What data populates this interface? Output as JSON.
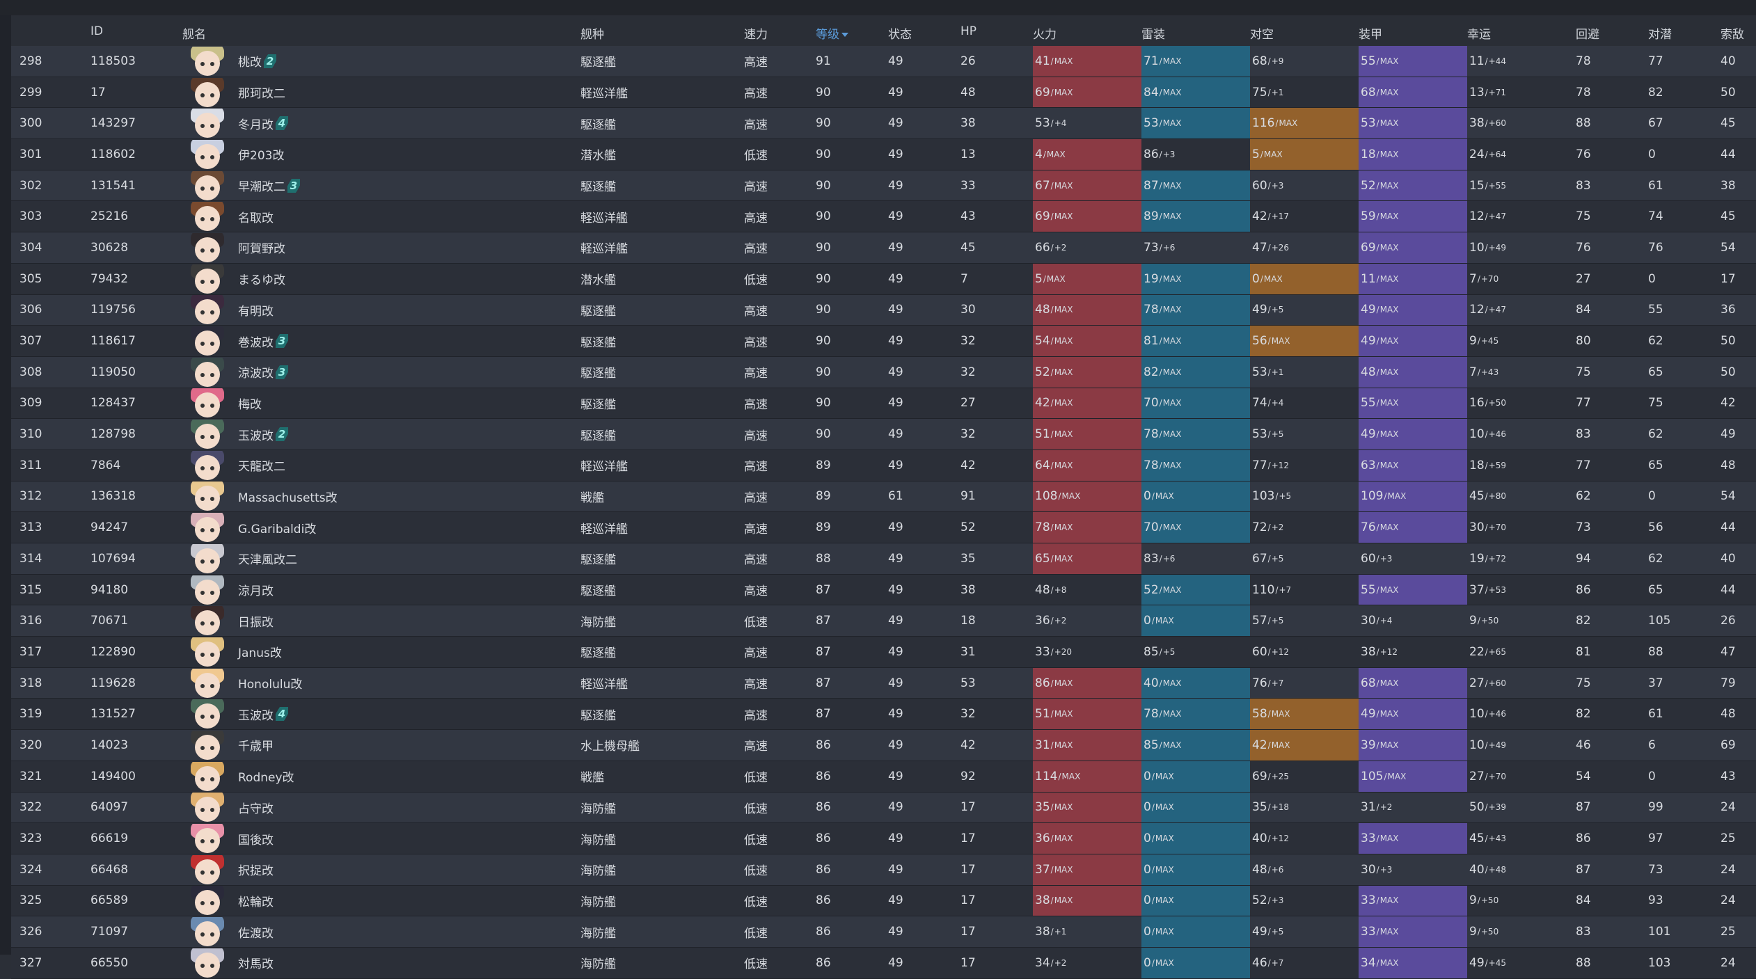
{
  "columns": {
    "no": "",
    "id": "ID",
    "name": "舰名",
    "type": "舰种",
    "speed": "速力",
    "level": "等级",
    "cond": "状态",
    "hp": "HP",
    "fire": "火力",
    "torp": "雷装",
    "aa": "对空",
    "armor": "装甲",
    "luck": "幸运",
    "evasion": "回避",
    "asw": "对潜",
    "los": "索敌"
  },
  "sort": {
    "column": "level",
    "direction": "desc"
  },
  "colors": {
    "fire_max": "#8b3a44",
    "torp_max": "#24637f",
    "aa_max": "#93612c",
    "armor_max": "#5a4b9c",
    "sorted_header": "#5b9bd9"
  },
  "rows": [
    {
      "no": "298",
      "id": "118503",
      "name": "桃改",
      "badge": "2",
      "type": "駆逐艦",
      "speed": "高速",
      "level": "91",
      "cond": "49",
      "hp": "26",
      "fire": {
        "v": "41",
        "s": "MAX"
      },
      "torp": {
        "v": "71",
        "s": "MAX"
      },
      "aa": {
        "v": "68",
        "s": "+9"
      },
      "armor": {
        "v": "55",
        "s": "MAX"
      },
      "luck": {
        "v": "11",
        "s": "+44"
      },
      "evasion": "78",
      "asw": "77",
      "los": "40",
      "hair": "#c9c08a"
    },
    {
      "no": "299",
      "id": "17",
      "name": "那珂改二",
      "badge": "",
      "type": "軽巡洋艦",
      "speed": "高速",
      "level": "90",
      "cond": "49",
      "hp": "48",
      "fire": {
        "v": "69",
        "s": "MAX"
      },
      "torp": {
        "v": "84",
        "s": "MAX"
      },
      "aa": {
        "v": "75",
        "s": "+1"
      },
      "armor": {
        "v": "68",
        "s": "MAX"
      },
      "luck": {
        "v": "13",
        "s": "+71"
      },
      "evasion": "78",
      "asw": "82",
      "los": "50",
      "hair": "#5a3a2a"
    },
    {
      "no": "300",
      "id": "143297",
      "name": "冬月改",
      "badge": "4",
      "type": "駆逐艦",
      "speed": "高速",
      "level": "90",
      "cond": "49",
      "hp": "38",
      "fire": {
        "v": "53",
        "s": "+4"
      },
      "torp": {
        "v": "53",
        "s": "MAX"
      },
      "aa": {
        "v": "116",
        "s": "MAX"
      },
      "armor": {
        "v": "53",
        "s": "MAX"
      },
      "luck": {
        "v": "38",
        "s": "+60"
      },
      "evasion": "88",
      "asw": "67",
      "los": "45",
      "hair": "#d9dde6"
    },
    {
      "no": "301",
      "id": "118602",
      "name": "伊203改",
      "badge": "",
      "type": "潜水艦",
      "speed": "低速",
      "level": "90",
      "cond": "49",
      "hp": "13",
      "fire": {
        "v": "4",
        "s": "MAX"
      },
      "torp": {
        "v": "86",
        "s": "+3"
      },
      "aa": {
        "v": "5",
        "s": "MAX"
      },
      "armor": {
        "v": "18",
        "s": "MAX"
      },
      "luck": {
        "v": "24",
        "s": "+64"
      },
      "evasion": "76",
      "asw": "0",
      "los": "44",
      "hair": "#c8cfe0"
    },
    {
      "no": "302",
      "id": "131541",
      "name": "早潮改二",
      "badge": "3",
      "type": "駆逐艦",
      "speed": "高速",
      "level": "90",
      "cond": "49",
      "hp": "33",
      "fire": {
        "v": "67",
        "s": "MAX"
      },
      "torp": {
        "v": "87",
        "s": "MAX"
      },
      "aa": {
        "v": "60",
        "s": "+3"
      },
      "armor": {
        "v": "52",
        "s": "MAX"
      },
      "luck": {
        "v": "15",
        "s": "+55"
      },
      "evasion": "83",
      "asw": "61",
      "los": "38",
      "hair": "#6b4a35"
    },
    {
      "no": "303",
      "id": "25216",
      "name": "名取改",
      "badge": "",
      "type": "軽巡洋艦",
      "speed": "高速",
      "level": "90",
      "cond": "49",
      "hp": "43",
      "fire": {
        "v": "69",
        "s": "MAX"
      },
      "torp": {
        "v": "89",
        "s": "MAX"
      },
      "aa": {
        "v": "42",
        "s": "+17"
      },
      "armor": {
        "v": "59",
        "s": "MAX"
      },
      "luck": {
        "v": "12",
        "s": "+47"
      },
      "evasion": "75",
      "asw": "74",
      "los": "45",
      "hair": "#7a4a2e"
    },
    {
      "no": "304",
      "id": "30628",
      "name": "阿賀野改",
      "badge": "",
      "type": "軽巡洋艦",
      "speed": "高速",
      "level": "90",
      "cond": "49",
      "hp": "45",
      "fire": {
        "v": "66",
        "s": "+2"
      },
      "torp": {
        "v": "73",
        "s": "+6"
      },
      "aa": {
        "v": "47",
        "s": "+26"
      },
      "armor": {
        "v": "69",
        "s": "MAX"
      },
      "luck": {
        "v": "10",
        "s": "+49"
      },
      "evasion": "76",
      "asw": "76",
      "los": "54",
      "hair": "#2e2a2e"
    },
    {
      "no": "305",
      "id": "79432",
      "name": "まるゆ改",
      "badge": "",
      "type": "潜水艦",
      "speed": "低速",
      "level": "90",
      "cond": "49",
      "hp": "7",
      "fire": {
        "v": "5",
        "s": "MAX"
      },
      "torp": {
        "v": "19",
        "s": "MAX"
      },
      "aa": {
        "v": "0",
        "s": "MAX"
      },
      "armor": {
        "v": "11",
        "s": "MAX"
      },
      "luck": {
        "v": "7",
        "s": "+70"
      },
      "evasion": "27",
      "asw": "0",
      "los": "17",
      "hair": "#3a3a3a"
    },
    {
      "no": "306",
      "id": "119756",
      "name": "有明改",
      "badge": "",
      "type": "駆逐艦",
      "speed": "高速",
      "level": "90",
      "cond": "49",
      "hp": "30",
      "fire": {
        "v": "48",
        "s": "MAX"
      },
      "torp": {
        "v": "78",
        "s": "MAX"
      },
      "aa": {
        "v": "49",
        "s": "+5"
      },
      "armor": {
        "v": "49",
        "s": "MAX"
      },
      "luck": {
        "v": "12",
        "s": "+47"
      },
      "evasion": "84",
      "asw": "55",
      "los": "36",
      "hair": "#3b2a3e"
    },
    {
      "no": "307",
      "id": "118617",
      "name": "巻波改",
      "badge": "3",
      "type": "駆逐艦",
      "speed": "高速",
      "level": "90",
      "cond": "49",
      "hp": "32",
      "fire": {
        "v": "54",
        "s": "MAX"
      },
      "torp": {
        "v": "81",
        "s": "MAX"
      },
      "aa": {
        "v": "56",
        "s": "MAX"
      },
      "armor": {
        "v": "49",
        "s": "MAX"
      },
      "luck": {
        "v": "9",
        "s": "+45"
      },
      "evasion": "80",
      "asw": "62",
      "los": "50",
      "hair": "#2c2c3a"
    },
    {
      "no": "308",
      "id": "119050",
      "name": "涼波改",
      "badge": "3",
      "type": "駆逐艦",
      "speed": "高速",
      "level": "90",
      "cond": "49",
      "hp": "32",
      "fire": {
        "v": "52",
        "s": "MAX"
      },
      "torp": {
        "v": "82",
        "s": "MAX"
      },
      "aa": {
        "v": "53",
        "s": "+1"
      },
      "armor": {
        "v": "48",
        "s": "MAX"
      },
      "luck": {
        "v": "7",
        "s": "+43"
      },
      "evasion": "75",
      "asw": "65",
      "los": "50",
      "hair": "#3a4a4a"
    },
    {
      "no": "309",
      "id": "128437",
      "name": "梅改",
      "badge": "",
      "type": "駆逐艦",
      "speed": "高速",
      "level": "90",
      "cond": "49",
      "hp": "27",
      "fire": {
        "v": "42",
        "s": "MAX"
      },
      "torp": {
        "v": "70",
        "s": "MAX"
      },
      "aa": {
        "v": "74",
        "s": "+4"
      },
      "armor": {
        "v": "55",
        "s": "MAX"
      },
      "luck": {
        "v": "16",
        "s": "+50"
      },
      "evasion": "77",
      "asw": "75",
      "los": "42",
      "hair": "#e06a8a"
    },
    {
      "no": "310",
      "id": "128798",
      "name": "玉波改",
      "badge": "2",
      "type": "駆逐艦",
      "speed": "高速",
      "level": "90",
      "cond": "49",
      "hp": "32",
      "fire": {
        "v": "51",
        "s": "MAX"
      },
      "torp": {
        "v": "78",
        "s": "MAX"
      },
      "aa": {
        "v": "53",
        "s": "+5"
      },
      "armor": {
        "v": "49",
        "s": "MAX"
      },
      "luck": {
        "v": "10",
        "s": "+46"
      },
      "evasion": "83",
      "asw": "62",
      "los": "49",
      "hair": "#4a6a5a"
    },
    {
      "no": "311",
      "id": "7864",
      "name": "天龍改二",
      "badge": "",
      "type": "軽巡洋艦",
      "speed": "高速",
      "level": "89",
      "cond": "49",
      "hp": "42",
      "fire": {
        "v": "64",
        "s": "MAX"
      },
      "torp": {
        "v": "78",
        "s": "MAX"
      },
      "aa": {
        "v": "77",
        "s": "+12"
      },
      "armor": {
        "v": "63",
        "s": "MAX"
      },
      "luck": {
        "v": "18",
        "s": "+59"
      },
      "evasion": "77",
      "asw": "65",
      "los": "48",
      "hair": "#4a4a6a"
    },
    {
      "no": "312",
      "id": "136318",
      "name": "Massachusetts改",
      "badge": "",
      "type": "戦艦",
      "speed": "高速",
      "level": "89",
      "cond": "61",
      "hp": "91",
      "fire": {
        "v": "108",
        "s": "MAX"
      },
      "torp": {
        "v": "0",
        "s": "MAX"
      },
      "aa": {
        "v": "103",
        "s": "+5"
      },
      "armor": {
        "v": "109",
        "s": "MAX"
      },
      "luck": {
        "v": "45",
        "s": "+80"
      },
      "evasion": "62",
      "asw": "0",
      "los": "54",
      "hair": "#e8c890"
    },
    {
      "no": "313",
      "id": "94247",
      "name": "G.Garibaldi改",
      "badge": "",
      "type": "軽巡洋艦",
      "speed": "高速",
      "level": "89",
      "cond": "49",
      "hp": "52",
      "fire": {
        "v": "78",
        "s": "MAX"
      },
      "torp": {
        "v": "70",
        "s": "MAX"
      },
      "aa": {
        "v": "72",
        "s": "+2"
      },
      "armor": {
        "v": "76",
        "s": "MAX"
      },
      "luck": {
        "v": "30",
        "s": "+70"
      },
      "evasion": "73",
      "asw": "56",
      "los": "44",
      "hair": "#d8b0b8"
    },
    {
      "no": "314",
      "id": "107694",
      "name": "天津風改二",
      "badge": "",
      "type": "駆逐艦",
      "speed": "高速",
      "level": "88",
      "cond": "49",
      "hp": "35",
      "fire": {
        "v": "65",
        "s": "MAX"
      },
      "torp": {
        "v": "83",
        "s": "+6"
      },
      "aa": {
        "v": "67",
        "s": "+5"
      },
      "armor": {
        "v": "60",
        "s": "+3"
      },
      "luck": {
        "v": "19",
        "s": "+72"
      },
      "evasion": "94",
      "asw": "62",
      "los": "40",
      "hair": "#c8c8d0"
    },
    {
      "no": "315",
      "id": "94180",
      "name": "涼月改",
      "badge": "",
      "type": "駆逐艦",
      "speed": "高速",
      "level": "87",
      "cond": "49",
      "hp": "38",
      "fire": {
        "v": "48",
        "s": "+8"
      },
      "torp": {
        "v": "52",
        "s": "MAX"
      },
      "aa": {
        "v": "110",
        "s": "+7"
      },
      "armor": {
        "v": "55",
        "s": "MAX"
      },
      "luck": {
        "v": "37",
        "s": "+53"
      },
      "evasion": "86",
      "asw": "65",
      "los": "44",
      "hair": "#b0b8c0"
    },
    {
      "no": "316",
      "id": "70671",
      "name": "日振改",
      "badge": "",
      "type": "海防艦",
      "speed": "低速",
      "level": "87",
      "cond": "49",
      "hp": "18",
      "fire": {
        "v": "36",
        "s": "+2"
      },
      "torp": {
        "v": "0",
        "s": "MAX"
      },
      "aa": {
        "v": "57",
        "s": "+5"
      },
      "armor": {
        "v": "30",
        "s": "+4"
      },
      "luck": {
        "v": "9",
        "s": "+50"
      },
      "evasion": "82",
      "asw": "105",
      "los": "26",
      "hair": "#3a2a2a"
    },
    {
      "no": "317",
      "id": "122890",
      "name": "Janus改",
      "badge": "",
      "type": "駆逐艦",
      "speed": "高速",
      "level": "87",
      "cond": "49",
      "hp": "31",
      "fire": {
        "v": "33",
        "s": "+20"
      },
      "torp": {
        "v": "85",
        "s": "+5"
      },
      "aa": {
        "v": "60",
        "s": "+12"
      },
      "armor": {
        "v": "38",
        "s": "+12"
      },
      "luck": {
        "v": "22",
        "s": "+65"
      },
      "evasion": "81",
      "asw": "88",
      "los": "47",
      "hair": "#e0c080"
    },
    {
      "no": "318",
      "id": "119628",
      "name": "Honolulu改",
      "badge": "",
      "type": "軽巡洋艦",
      "speed": "高速",
      "level": "87",
      "cond": "49",
      "hp": "53",
      "fire": {
        "v": "86",
        "s": "MAX"
      },
      "torp": {
        "v": "40",
        "s": "MAX"
      },
      "aa": {
        "v": "76",
        "s": "+7"
      },
      "armor": {
        "v": "68",
        "s": "MAX"
      },
      "luck": {
        "v": "27",
        "s": "+60"
      },
      "evasion": "75",
      "asw": "37",
      "los": "79",
      "hair": "#f0c890"
    },
    {
      "no": "319",
      "id": "131527",
      "name": "玉波改",
      "badge": "4",
      "type": "駆逐艦",
      "speed": "高速",
      "level": "87",
      "cond": "49",
      "hp": "32",
      "fire": {
        "v": "51",
        "s": "MAX"
      },
      "torp": {
        "v": "78",
        "s": "MAX"
      },
      "aa": {
        "v": "58",
        "s": "MAX"
      },
      "armor": {
        "v": "49",
        "s": "MAX"
      },
      "luck": {
        "v": "10",
        "s": "+46"
      },
      "evasion": "82",
      "asw": "61",
      "los": "48",
      "hair": "#4a6a5a"
    },
    {
      "no": "320",
      "id": "14023",
      "name": "千歳甲",
      "badge": "",
      "type": "水上機母艦",
      "speed": "高速",
      "level": "86",
      "cond": "49",
      "hp": "42",
      "fire": {
        "v": "31",
        "s": "MAX"
      },
      "torp": {
        "v": "85",
        "s": "MAX"
      },
      "aa": {
        "v": "42",
        "s": "MAX"
      },
      "armor": {
        "v": "39",
        "s": "MAX"
      },
      "luck": {
        "v": "10",
        "s": "+49"
      },
      "evasion": "46",
      "asw": "6",
      "los": "69",
      "hair": "#3a3a3a"
    },
    {
      "no": "321",
      "id": "149400",
      "name": "Rodney改",
      "badge": "",
      "type": "戦艦",
      "speed": "低速",
      "level": "86",
      "cond": "49",
      "hp": "92",
      "fire": {
        "v": "114",
        "s": "MAX"
      },
      "torp": {
        "v": "0",
        "s": "MAX"
      },
      "aa": {
        "v": "69",
        "s": "+25"
      },
      "armor": {
        "v": "105",
        "s": "MAX"
      },
      "luck": {
        "v": "27",
        "s": "+70"
      },
      "evasion": "54",
      "asw": "0",
      "los": "43",
      "hair": "#d8a860"
    },
    {
      "no": "322",
      "id": "64097",
      "name": "占守改",
      "badge": "",
      "type": "海防艦",
      "speed": "低速",
      "level": "86",
      "cond": "49",
      "hp": "17",
      "fire": {
        "v": "35",
        "s": "MAX"
      },
      "torp": {
        "v": "0",
        "s": "MAX"
      },
      "aa": {
        "v": "35",
        "s": "+18"
      },
      "armor": {
        "v": "31",
        "s": "+2"
      },
      "luck": {
        "v": "50",
        "s": "+39"
      },
      "evasion": "87",
      "asw": "99",
      "los": "24",
      "hair": "#e0b070"
    },
    {
      "no": "323",
      "id": "66619",
      "name": "国後改",
      "badge": "",
      "type": "海防艦",
      "speed": "低速",
      "level": "86",
      "cond": "49",
      "hp": "17",
      "fire": {
        "v": "36",
        "s": "MAX"
      },
      "torp": {
        "v": "0",
        "s": "MAX"
      },
      "aa": {
        "v": "40",
        "s": "+12"
      },
      "armor": {
        "v": "33",
        "s": "MAX"
      },
      "luck": {
        "v": "45",
        "s": "+43"
      },
      "evasion": "86",
      "asw": "97",
      "los": "25",
      "hair": "#e890a8"
    },
    {
      "no": "324",
      "id": "66468",
      "name": "択捉改",
      "badge": "",
      "type": "海防艦",
      "speed": "低速",
      "level": "86",
      "cond": "49",
      "hp": "17",
      "fire": {
        "v": "37",
        "s": "MAX"
      },
      "torp": {
        "v": "0",
        "s": "MAX"
      },
      "aa": {
        "v": "48",
        "s": "+6"
      },
      "armor": {
        "v": "30",
        "s": "+3"
      },
      "luck": {
        "v": "40",
        "s": "+48"
      },
      "evasion": "87",
      "asw": "73",
      "los": "24",
      "hair": "#c03030"
    },
    {
      "no": "325",
      "id": "66589",
      "name": "松輪改",
      "badge": "",
      "type": "海防艦",
      "speed": "低速",
      "level": "86",
      "cond": "49",
      "hp": "17",
      "fire": {
        "v": "38",
        "s": "MAX"
      },
      "torp": {
        "v": "0",
        "s": "MAX"
      },
      "aa": {
        "v": "52",
        "s": "+3"
      },
      "armor": {
        "v": "33",
        "s": "MAX"
      },
      "luck": {
        "v": "9",
        "s": "+50"
      },
      "evasion": "84",
      "asw": "93",
      "los": "24",
      "hair": "#2a2a3a"
    },
    {
      "no": "326",
      "id": "71097",
      "name": "佐渡改",
      "badge": "",
      "type": "海防艦",
      "speed": "低速",
      "level": "86",
      "cond": "49",
      "hp": "17",
      "fire": {
        "v": "38",
        "s": "+1"
      },
      "torp": {
        "v": "0",
        "s": "MAX"
      },
      "aa": {
        "v": "49",
        "s": "+5"
      },
      "armor": {
        "v": "33",
        "s": "MAX"
      },
      "luck": {
        "v": "9",
        "s": "+50"
      },
      "evasion": "83",
      "asw": "101",
      "los": "25",
      "hair": "#6a8ab0"
    },
    {
      "no": "327",
      "id": "66550",
      "name": "対馬改",
      "badge": "",
      "type": "海防艦",
      "speed": "低速",
      "level": "86",
      "cond": "49",
      "hp": "17",
      "fire": {
        "v": "34",
        "s": "+2"
      },
      "torp": {
        "v": "0",
        "s": "MAX"
      },
      "aa": {
        "v": "46",
        "s": "+7"
      },
      "armor": {
        "v": "34",
        "s": "MAX"
      },
      "luck": {
        "v": "49",
        "s": "+45"
      },
      "evasion": "88",
      "asw": "103",
      "los": "24",
      "hair": "#c0c0d0"
    }
  ]
}
